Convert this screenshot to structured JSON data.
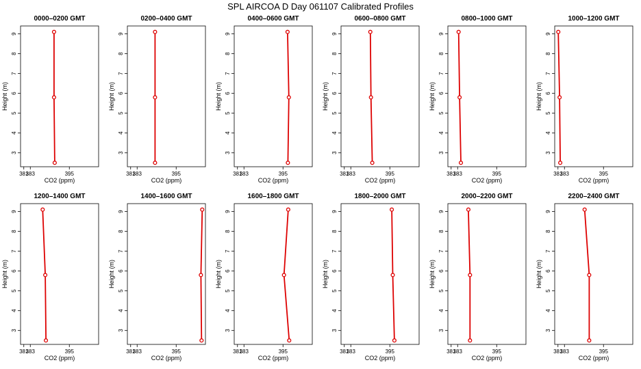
{
  "figure_title": "SPL AIRCOA D  Day 061107  Calibrated Profiles",
  "colors": {
    "profile": "#dd0000",
    "axis": "#000000",
    "background": "#ffffff"
  },
  "chart_data": [
    {
      "type": "line",
      "title": "0000–0200 GMT",
      "xlabel": "CO2 (ppm)",
      "ylabel": "Height (m)",
      "xlim": [
        380,
        404
      ],
      "ylim": [
        2.3,
        9.4
      ],
      "xticks": [
        381,
        383,
        395
      ],
      "yticks": [
        3,
        4,
        5,
        6,
        7,
        8,
        9
      ],
      "grid": false,
      "series": [
        {
          "heights": [
            2.5,
            5.8,
            9.1
          ],
          "values": [
            390.5,
            390.3,
            390.3
          ]
        }
      ]
    },
    {
      "type": "line",
      "title": "0200–0400 GMT",
      "xlabel": "CO2 (ppm)",
      "ylabel": "Height (m)",
      "xlim": [
        380,
        404
      ],
      "ylim": [
        2.3,
        9.4
      ],
      "xticks": [
        381,
        383,
        395
      ],
      "yticks": [
        3,
        4,
        5,
        6,
        7,
        8,
        9
      ],
      "grid": false,
      "series": [
        {
          "heights": [
            2.5,
            5.8,
            9.1
          ],
          "values": [
            388.5,
            388.5,
            388.5
          ]
        }
      ]
    },
    {
      "type": "line",
      "title": "0400–0600 GMT",
      "xlabel": "CO2 (ppm)",
      "ylabel": "Height (m)",
      "xlim": [
        380,
        404
      ],
      "ylim": [
        2.3,
        9.4
      ],
      "xticks": [
        381,
        383,
        395
      ],
      "yticks": [
        3,
        4,
        5,
        6,
        7,
        8,
        9
      ],
      "grid": false,
      "series": [
        {
          "heights": [
            2.5,
            5.8,
            9.1
          ],
          "values": [
            396.5,
            396.8,
            396.4
          ]
        }
      ]
    },
    {
      "type": "line",
      "title": "0600–0800 GMT",
      "xlabel": "CO2 (ppm)",
      "ylabel": "Height (m)",
      "xlim": [
        380,
        404
      ],
      "ylim": [
        2.3,
        9.4
      ],
      "xticks": [
        381,
        383,
        395
      ],
      "yticks": [
        3,
        4,
        5,
        6,
        7,
        8,
        9
      ],
      "grid": false,
      "series": [
        {
          "heights": [
            2.5,
            5.8,
            9.1
          ],
          "values": [
            389.6,
            389.2,
            389.0
          ]
        }
      ]
    },
    {
      "type": "line",
      "title": "0800–1000 GMT",
      "xlabel": "CO2 (ppm)",
      "ylabel": "Height (m)",
      "xlim": [
        380,
        404
      ],
      "ylim": [
        2.3,
        9.4
      ],
      "xticks": [
        381,
        383,
        395
      ],
      "yticks": [
        3,
        4,
        5,
        6,
        7,
        8,
        9
      ],
      "grid": false,
      "series": [
        {
          "heights": [
            2.5,
            5.8,
            9.1
          ],
          "values": [
            384.0,
            383.6,
            383.3
          ]
        }
      ]
    },
    {
      "type": "line",
      "title": "1000–1200 GMT",
      "xlabel": "CO2 (ppm)",
      "ylabel": "Height (m)",
      "xlim": [
        380,
        404
      ],
      "ylim": [
        2.3,
        9.4
      ],
      "xticks": [
        381,
        383,
        395
      ],
      "yticks": [
        3,
        4,
        5,
        6,
        7,
        8,
        9
      ],
      "grid": false,
      "series": [
        {
          "heights": [
            2.5,
            5.8,
            9.1
          ],
          "values": [
            381.7,
            381.5,
            381.1
          ]
        }
      ]
    },
    {
      "type": "line",
      "title": "1200–1400 GMT",
      "xlabel": "CO2 (ppm)",
      "ylabel": "Height (m)",
      "xlim": [
        380,
        404
      ],
      "ylim": [
        2.3,
        9.4
      ],
      "xticks": [
        381,
        383,
        395
      ],
      "yticks": [
        3,
        4,
        5,
        6,
        7,
        8,
        9
      ],
      "grid": false,
      "series": [
        {
          "heights": [
            2.5,
            5.8,
            9.1
          ],
          "values": [
            387.8,
            387.6,
            386.8
          ]
        }
      ]
    },
    {
      "type": "line",
      "title": "1400–1600 GMT",
      "xlabel": "CO2 (ppm)",
      "ylabel": "Height (m)",
      "xlim": [
        380,
        404
      ],
      "ylim": [
        2.3,
        9.4
      ],
      "xticks": [
        381,
        383,
        395
      ],
      "yticks": [
        3,
        4,
        5,
        6,
        7,
        8,
        9
      ],
      "grid": false,
      "series": [
        {
          "heights": [
            2.5,
            5.8,
            9.1
          ],
          "values": [
            402.8,
            402.6,
            403.0
          ]
        }
      ]
    },
    {
      "type": "line",
      "title": "1600–1800 GMT",
      "xlabel": "CO2 (ppm)",
      "ylabel": "Height (m)",
      "xlim": [
        380,
        404
      ],
      "ylim": [
        2.3,
        9.4
      ],
      "xticks": [
        381,
        383,
        395
      ],
      "yticks": [
        3,
        4,
        5,
        6,
        7,
        8,
        9
      ],
      "grid": false,
      "series": [
        {
          "heights": [
            2.5,
            5.8,
            9.1
          ],
          "values": [
            396.9,
            395.3,
            396.6
          ]
        }
      ]
    },
    {
      "type": "line",
      "title": "1800–2000 GMT",
      "xlabel": "CO2 (ppm)",
      "ylabel": "Height (m)",
      "xlim": [
        380,
        404
      ],
      "ylim": [
        2.3,
        9.4
      ],
      "xticks": [
        381,
        383,
        395
      ],
      "yticks": [
        3,
        4,
        5,
        6,
        7,
        8,
        9
      ],
      "grid": false,
      "series": [
        {
          "heights": [
            2.5,
            5.8,
            9.1
          ],
          "values": [
            396.4,
            395.9,
            395.6
          ]
        }
      ]
    },
    {
      "type": "line",
      "title": "2000–2200 GMT",
      "xlabel": "CO2 (ppm)",
      "ylabel": "Height (m)",
      "xlim": [
        380,
        404
      ],
      "ylim": [
        2.3,
        9.4
      ],
      "xticks": [
        381,
        383,
        395
      ],
      "yticks": [
        3,
        4,
        5,
        6,
        7,
        8,
        9
      ],
      "grid": false,
      "series": [
        {
          "heights": [
            2.5,
            5.8,
            9.1
          ],
          "values": [
            386.8,
            386.8,
            386.3
          ]
        }
      ]
    },
    {
      "type": "line",
      "title": "2200–2400 GMT",
      "xlabel": "CO2 (ppm)",
      "ylabel": "Height (m)",
      "xlim": [
        380,
        404
      ],
      "ylim": [
        2.3,
        9.4
      ],
      "xticks": [
        381,
        383,
        395
      ],
      "yticks": [
        3,
        4,
        5,
        6,
        7,
        8,
        9
      ],
      "grid": false,
      "series": [
        {
          "heights": [
            2.5,
            5.8,
            9.1
          ],
          "values": [
            390.6,
            390.6,
            389.2
          ]
        }
      ]
    }
  ]
}
